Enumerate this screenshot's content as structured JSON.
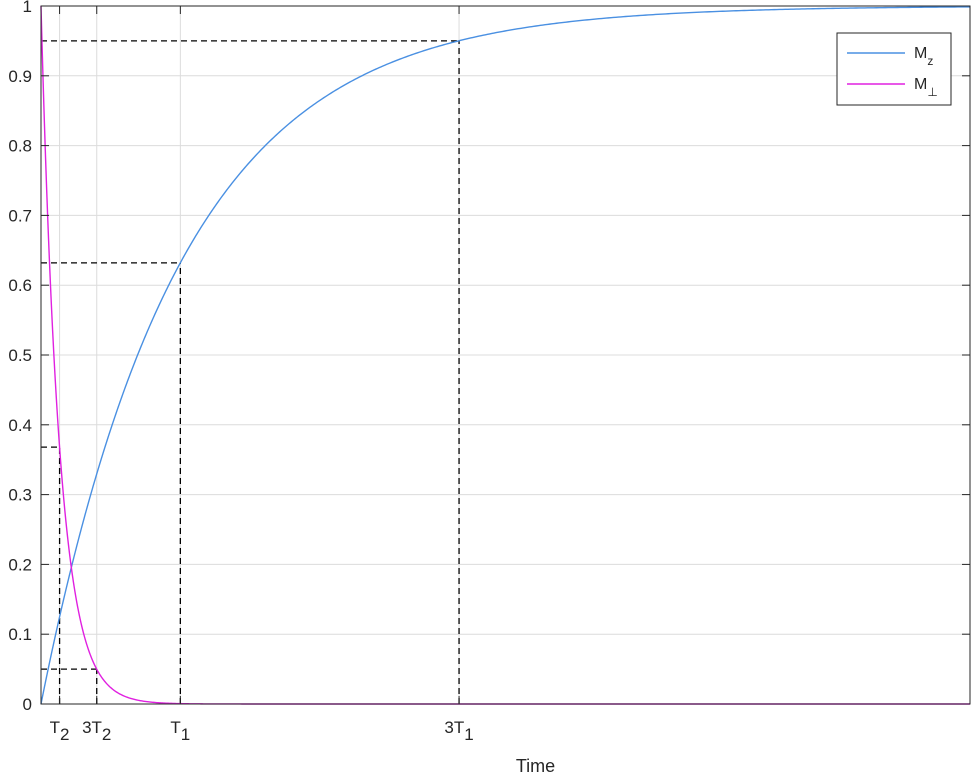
{
  "chart_data": {
    "type": "line",
    "title": "",
    "xlabel": "Time",
    "ylabel": "",
    "xlim": [
      0,
      1
    ],
    "ylim": [
      0,
      1
    ],
    "grid": true,
    "legend_position": "top-right",
    "parameters": {
      "T1": 0.15,
      "T2": 0.02
    },
    "x_ticks": [
      {
        "x": 0.02,
        "main": "T",
        "sub": "2",
        "prefix": ""
      },
      {
        "x": 0.06,
        "main": "T",
        "sub": "2",
        "prefix": "3"
      },
      {
        "x": 0.15,
        "main": "T",
        "sub": "1",
        "prefix": ""
      },
      {
        "x": 0.45,
        "main": "T",
        "sub": "1",
        "prefix": "3"
      }
    ],
    "y_ticks": [
      0,
      0.1,
      0.2,
      0.3,
      0.4,
      0.5,
      0.6,
      0.7,
      0.8,
      0.9,
      1
    ],
    "y_tick_labels": [
      "0",
      "0.1",
      "0.2",
      "0.3",
      "0.4",
      "0.5",
      "0.6",
      "0.7",
      "0.8",
      "0.9",
      "1"
    ],
    "series": [
      {
        "name": "M_z",
        "legend_main": "M",
        "legend_sub": "z",
        "color": "#4a90e2",
        "formula": "1 - exp(-t/T1)",
        "x": [
          0,
          0.01,
          0.02,
          0.03,
          0.04,
          0.05,
          0.06,
          0.08,
          0.1,
          0.12,
          0.15,
          0.2,
          0.25,
          0.3,
          0.35,
          0.4,
          0.45,
          0.5,
          0.6,
          0.7,
          0.8,
          0.9,
          1.0
        ],
        "values": [
          0,
          0.064,
          0.125,
          0.181,
          0.234,
          0.283,
          0.33,
          0.413,
          0.487,
          0.551,
          0.632,
          0.736,
          0.811,
          0.865,
          0.903,
          0.931,
          0.95,
          0.964,
          0.982,
          0.991,
          0.995,
          0.998,
          0.999
        ]
      },
      {
        "name": "M_⊥",
        "legend_main": "M",
        "legend_sub": "⊥",
        "color": "#e020e0",
        "formula": "exp(-t/T2)",
        "x": [
          0,
          0.005,
          0.01,
          0.015,
          0.02,
          0.03,
          0.04,
          0.05,
          0.06,
          0.08,
          0.1,
          0.12,
          0.15,
          0.2,
          0.3,
          0.5,
          1.0
        ],
        "values": [
          1,
          0.779,
          0.607,
          0.472,
          0.368,
          0.223,
          0.135,
          0.082,
          0.05,
          0.018,
          0.007,
          0.002,
          0.001,
          0,
          0,
          0,
          0
        ]
      }
    ],
    "reference_lines": [
      {
        "x": 0.02,
        "y": 0.368,
        "series": "M_⊥"
      },
      {
        "x": 0.06,
        "y": 0.05,
        "series": "M_⊥"
      },
      {
        "x": 0.15,
        "y": 0.632,
        "series": "M_z"
      },
      {
        "x": 0.45,
        "y": 0.95,
        "series": "M_z"
      }
    ]
  }
}
